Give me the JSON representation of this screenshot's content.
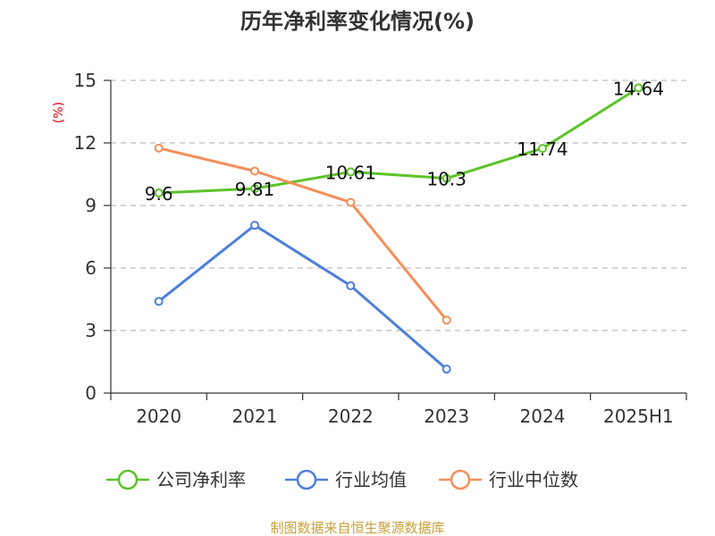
{
  "chart_data": {
    "type": "line",
    "title": "历年净利率变化情况(%)",
    "ylabel": "(%)",
    "xlabel": "",
    "ylim": [
      0,
      15
    ],
    "yticks": [
      0,
      3,
      6,
      9,
      12,
      15
    ],
    "grid": true,
    "categories": [
      "2020",
      "2021",
      "2022",
      "2023",
      "2024",
      "2025H1"
    ],
    "series": [
      {
        "name": "公司净利率",
        "color": "#5cc32a",
        "values": [
          9.6,
          9.81,
          10.61,
          10.3,
          11.74,
          14.64
        ],
        "labels": [
          "9.6",
          "9.81",
          "10.61",
          "10.3",
          "11.74",
          "14.64"
        ]
      },
      {
        "name": "行业均值",
        "color": "#4e7fdb",
        "values": [
          4.4,
          8.05,
          5.15,
          1.15,
          null,
          null
        ],
        "labels": null
      },
      {
        "name": "行业中位数",
        "color": "#f58e5a",
        "values": [
          11.75,
          10.65,
          9.15,
          3.5,
          null,
          null
        ],
        "labels": null
      }
    ],
    "legend_position": "bottom"
  },
  "source_text": "制图数据来自恒生聚源数据库"
}
